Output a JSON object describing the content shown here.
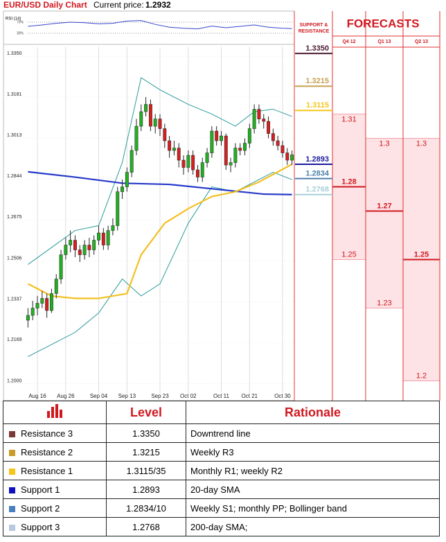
{
  "header": {
    "title": "EUR/USD Daily Chart",
    "price_label": "Current price:",
    "price": "1.2932"
  },
  "chart_data": {
    "type": "candlestick",
    "rsi": {
      "label": "RSI (14)",
      "ylim": [
        0,
        100
      ],
      "yticks": [
        {
          "value": 70,
          "label": "70%"
        },
        {
          "value": 30,
          "label": "30%"
        }
      ],
      "color": "#3344cc",
      "x": [
        0,
        3,
        6,
        9,
        12,
        15,
        18,
        21,
        24,
        27,
        30,
        33,
        36,
        39,
        42,
        45,
        48,
        51,
        54,
        56
      ],
      "values": [
        55,
        60,
        66,
        70,
        68,
        64,
        66,
        74,
        76,
        62,
        52,
        48,
        46,
        56,
        50,
        55,
        60,
        52,
        48,
        47
      ]
    },
    "xlim": [
      -0.5,
      56.5
    ],
    "xticks": [
      {
        "value": 2,
        "label": "Aug 16"
      },
      {
        "value": 8,
        "label": "Aug 26"
      },
      {
        "value": 15,
        "label": "Sep 04"
      },
      {
        "value": 21,
        "label": "Sep 13"
      },
      {
        "value": 28,
        "label": "Sep 23"
      },
      {
        "value": 34,
        "label": "Oct 02"
      },
      {
        "value": 41,
        "label": "Oct 11"
      },
      {
        "value": 47,
        "label": "Oct 21"
      },
      {
        "value": 54,
        "label": "Oct 30"
      }
    ],
    "ylim": [
      1.197,
      1.3376
    ],
    "yticks": [
      {
        "value": 1.335,
        "label": "1.3350"
      },
      {
        "value": 1.3181,
        "label": "1.3181"
      },
      {
        "value": 1.3013,
        "label": "1.3013"
      },
      {
        "value": 1.2844,
        "label": "1.2844"
      },
      {
        "value": 1.2675,
        "label": "1.2675"
      },
      {
        "value": 1.2506,
        "label": "1.2506"
      },
      {
        "value": 1.2337,
        "label": "1.2337"
      },
      {
        "value": 1.2169,
        "label": "1.2169"
      },
      {
        "value": 1.2,
        "label": "1.2000"
      }
    ],
    "grid": true,
    "candles": {
      "up_color": "#22b022",
      "down_color": "#d42020",
      "open": [
        1.225,
        1.227,
        1.23,
        1.232,
        1.234,
        1.229,
        1.236,
        1.242,
        1.252,
        1.256,
        1.258,
        1.254,
        1.252,
        1.256,
        1.254,
        1.258,
        1.261,
        1.256,
        1.262,
        1.264,
        1.278,
        1.28,
        1.286,
        1.295,
        1.305,
        1.311,
        1.314,
        1.305,
        1.308,
        1.304,
        1.299,
        1.295,
        1.296,
        1.291,
        1.288,
        1.293,
        1.287,
        1.284,
        1.29,
        1.294,
        1.303,
        1.299,
        1.301,
        1.289,
        1.29,
        1.296,
        1.295,
        1.298,
        1.304,
        1.312,
        1.308,
        1.307,
        1.302,
        1.299,
        1.297,
        1.294,
        1.291
      ],
      "high": [
        1.23,
        1.233,
        1.235,
        1.237,
        1.236,
        1.238,
        1.244,
        1.254,
        1.259,
        1.262,
        1.26,
        1.256,
        1.258,
        1.259,
        1.26,
        1.264,
        1.263,
        1.264,
        1.267,
        1.28,
        1.283,
        1.288,
        1.297,
        1.308,
        1.314,
        1.317,
        1.316,
        1.31,
        1.31,
        1.306,
        1.301,
        1.299,
        1.298,
        1.293,
        1.295,
        1.295,
        1.289,
        1.292,
        1.296,
        1.305,
        1.305,
        1.303,
        1.302,
        1.292,
        1.298,
        1.298,
        1.3,
        1.306,
        1.314,
        1.314,
        1.31,
        1.309,
        1.304,
        1.301,
        1.299,
        1.296,
        1.295
      ],
      "low": [
        1.222,
        1.225,
        1.227,
        1.23,
        1.226,
        1.228,
        1.234,
        1.24,
        1.25,
        1.253,
        1.251,
        1.249,
        1.25,
        1.251,
        1.252,
        1.256,
        1.254,
        1.254,
        1.26,
        1.262,
        1.275,
        1.278,
        1.284,
        1.293,
        1.303,
        1.309,
        1.303,
        1.302,
        1.301,
        1.296,
        1.292,
        1.293,
        1.288,
        1.285,
        1.286,
        1.285,
        1.282,
        1.282,
        1.288,
        1.292,
        1.297,
        1.297,
        1.287,
        1.286,
        1.288,
        1.293,
        1.293,
        1.296,
        1.302,
        1.306,
        1.304,
        1.3,
        1.297,
        1.295,
        1.292,
        1.289,
        1.289
      ],
      "close": [
        1.227,
        1.23,
        1.232,
        1.234,
        1.229,
        1.236,
        1.242,
        1.252,
        1.256,
        1.258,
        1.254,
        1.252,
        1.256,
        1.254,
        1.258,
        1.261,
        1.256,
        1.262,
        1.264,
        1.278,
        1.28,
        1.286,
        1.295,
        1.305,
        1.311,
        1.314,
        1.305,
        1.308,
        1.304,
        1.299,
        1.295,
        1.296,
        1.291,
        1.288,
        1.293,
        1.287,
        1.284,
        1.29,
        1.294,
        1.303,
        1.299,
        1.301,
        1.289,
        1.29,
        1.296,
        1.295,
        1.298,
        1.304,
        1.312,
        1.308,
        1.307,
        1.302,
        1.299,
        1.297,
        1.294,
        1.291,
        1.2932
      ]
    },
    "lines": [
      {
        "color": "#2a9a9a",
        "x": [
          0,
          5,
          10,
          15,
          20,
          24,
          28,
          34,
          39,
          44,
          48,
          52,
          56
        ],
        "values": [
          1.248,
          1.255,
          1.262,
          1.264,
          1.29,
          1.325,
          1.32,
          1.314,
          1.31,
          1.305,
          1.311,
          1.312,
          1.309
        ]
      },
      {
        "color": "#2a9a9a",
        "x": [
          0,
          5,
          10,
          15,
          20,
          24,
          28,
          34,
          39,
          44,
          48,
          52,
          56
        ],
        "values": [
          1.21,
          1.215,
          1.22,
          1.228,
          1.242,
          1.235,
          1.24,
          1.265,
          1.28,
          1.278,
          1.282,
          1.286,
          1.283
        ]
      },
      {
        "color": "#2438c8",
        "x": [
          0,
          10,
          20,
          30,
          40,
          50,
          56
        ],
        "values": [
          1.2862,
          1.284,
          1.2815,
          1.281,
          1.279,
          1.277,
          1.2768
        ]
      },
      {
        "color": "#f2c020",
        "x": [
          0,
          5,
          10,
          15,
          21,
          24,
          29,
          34,
          39,
          44,
          49,
          56
        ],
        "values": [
          1.24,
          1.235,
          1.234,
          1.234,
          1.236,
          1.252,
          1.265,
          1.271,
          1.276,
          1.278,
          1.282,
          1.2893
        ]
      }
    ]
  },
  "levels": {
    "title": "SUPPORT & RESISTANCE",
    "items": [
      {
        "value": 1.335,
        "label": "1.3350",
        "color": "#4a1830"
      },
      {
        "value": 1.3215,
        "label": "1.3215",
        "color": "#c8a050"
      },
      {
        "value": 1.3115,
        "label": "1.3115",
        "color": "#f5c518"
      },
      {
        "value": 1.2893,
        "label": "1.2893",
        "color": "#1a1aa0"
      },
      {
        "value": 1.2834,
        "label": "1.2834",
        "color": "#4a7faa"
      },
      {
        "value": 1.2768,
        "label": "1.2768",
        "color": "#a8d0d8"
      }
    ]
  },
  "forecasts": {
    "title": "FORECASTS",
    "columns": [
      {
        "quarter": "Q4 12",
        "values": [
          1.31,
          1.28,
          1.25
        ]
      },
      {
        "quarter": "Q1 13",
        "values": [
          1.3,
          1.27,
          1.23
        ]
      },
      {
        "quarter": "Q2 13",
        "values": [
          1.3,
          1.25,
          1.2
        ]
      }
    ]
  },
  "table": {
    "headers": [
      "Level",
      "Rationale"
    ],
    "rows": [
      {
        "color": "#7b3a3a",
        "name": "Resistance 3",
        "level": "1.3350",
        "rationale": "Downtrend line"
      },
      {
        "color": "#c89b2a",
        "name": "Resistance 2",
        "level": "1.3215",
        "rationale": "Weekly R3"
      },
      {
        "color": "#f5c518",
        "name": "Resistance 1",
        "level": "1.3115/35",
        "rationale": "Monthly R1; weekly R2"
      },
      {
        "color": "#1010c0",
        "name": "Support 1",
        "level": "1.2893",
        "rationale": "20-day SMA"
      },
      {
        "color": "#4a80c0",
        "name": "Support 2",
        "level": "1.2834/10",
        "rationale": "Weekly S1; monthly PP; Bollinger band"
      },
      {
        "color": "#b8c8e0",
        "name": "Support 3",
        "level": "1.2768",
        "rationale": "200-day SMA;"
      }
    ]
  }
}
